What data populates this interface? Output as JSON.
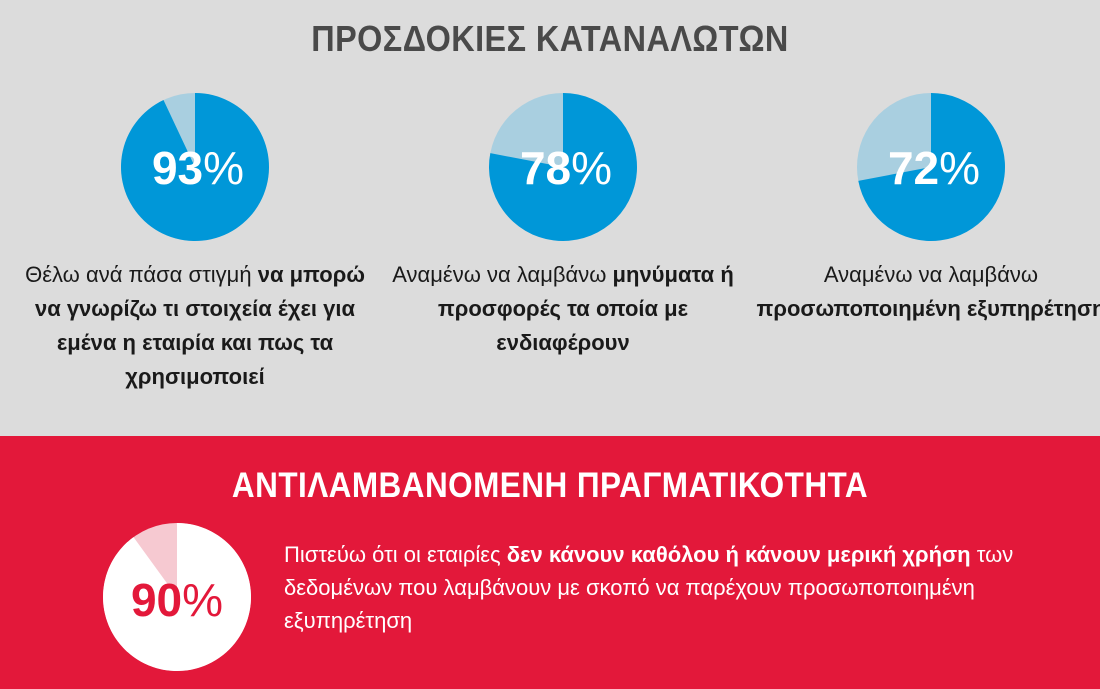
{
  "top_section": {
    "title": "ΠΡΟΣΔΟΚΙΕΣ ΚΑΤΑΝΑΛΩΤΩΝ",
    "items": [
      {
        "value": 93,
        "number_label": "93",
        "percent_sign": "%",
        "text": [
          {
            "t": "Θέλω ανά πάσα στιγμή ",
            "b": false
          },
          {
            "t": "να μπορώ να γνωρίζω τι στοιχεία έχει για εμένα η εταιρία και πως τα χρησιμοποιεί",
            "b": true
          }
        ]
      },
      {
        "value": 78,
        "number_label": "78",
        "percent_sign": "%",
        "text": [
          {
            "t": "Αναμένω να λαμβάνω ",
            "b": false
          },
          {
            "t": "μηνύματα ή προσφορές τα οποία με ενδιαφέρουν",
            "b": true
          }
        ]
      },
      {
        "value": 72,
        "number_label": "72",
        "percent_sign": "%",
        "text": [
          {
            "t": "Αναμένω να λαμβάνω ",
            "b": false
          },
          {
            "t": "προσωποποιημένη εξυπηρέτηση",
            "b": true
          }
        ]
      }
    ]
  },
  "bottom_section": {
    "title": "ΑΝΤΙΛΑΜΒΑΝΟΜΕΝΗ ΠΡΑΓΜΑΤΙΚΟΤΗΤΑ",
    "item": {
      "value": 90,
      "number_label": "90",
      "percent_sign": "%",
      "text": [
        {
          "t": "Πιστεύω ότι οι εταιρίες ",
          "b": false
        },
        {
          "t": "δεν κάνουν καθόλου ή κάνουν μερική χρήση",
          "b": true
        },
        {
          "t": " των δεδομένων που λαμβάνουν με σκοπό να παρέχουν προσωποποιημένη εξυπηρέτηση",
          "b": false
        }
      ]
    }
  },
  "colors": {
    "top_background": "#dcdcdc",
    "bottom_background": "#e3183a",
    "pie_filled": "#0097d8",
    "pie_remainder": "#a9cfe0",
    "bottom_pie_filled": "#ffffff",
    "bottom_pie_remainder": "#f6c9d1",
    "bottom_label": "#e3183a"
  },
  "chart_data": [
    {
      "type": "pie",
      "title": "",
      "slices": [
        {
          "label": "93%",
          "value": 93
        },
        {
          "label": "",
          "value": 7
        }
      ]
    },
    {
      "type": "pie",
      "title": "",
      "slices": [
        {
          "label": "78%",
          "value": 78
        },
        {
          "label": "",
          "value": 22
        }
      ]
    },
    {
      "type": "pie",
      "title": "",
      "slices": [
        {
          "label": "72%",
          "value": 72
        },
        {
          "label": "",
          "value": 28
        }
      ]
    },
    {
      "type": "pie",
      "title": "",
      "slices": [
        {
          "label": "90%",
          "value": 90
        },
        {
          "label": "",
          "value": 10
        }
      ]
    }
  ]
}
